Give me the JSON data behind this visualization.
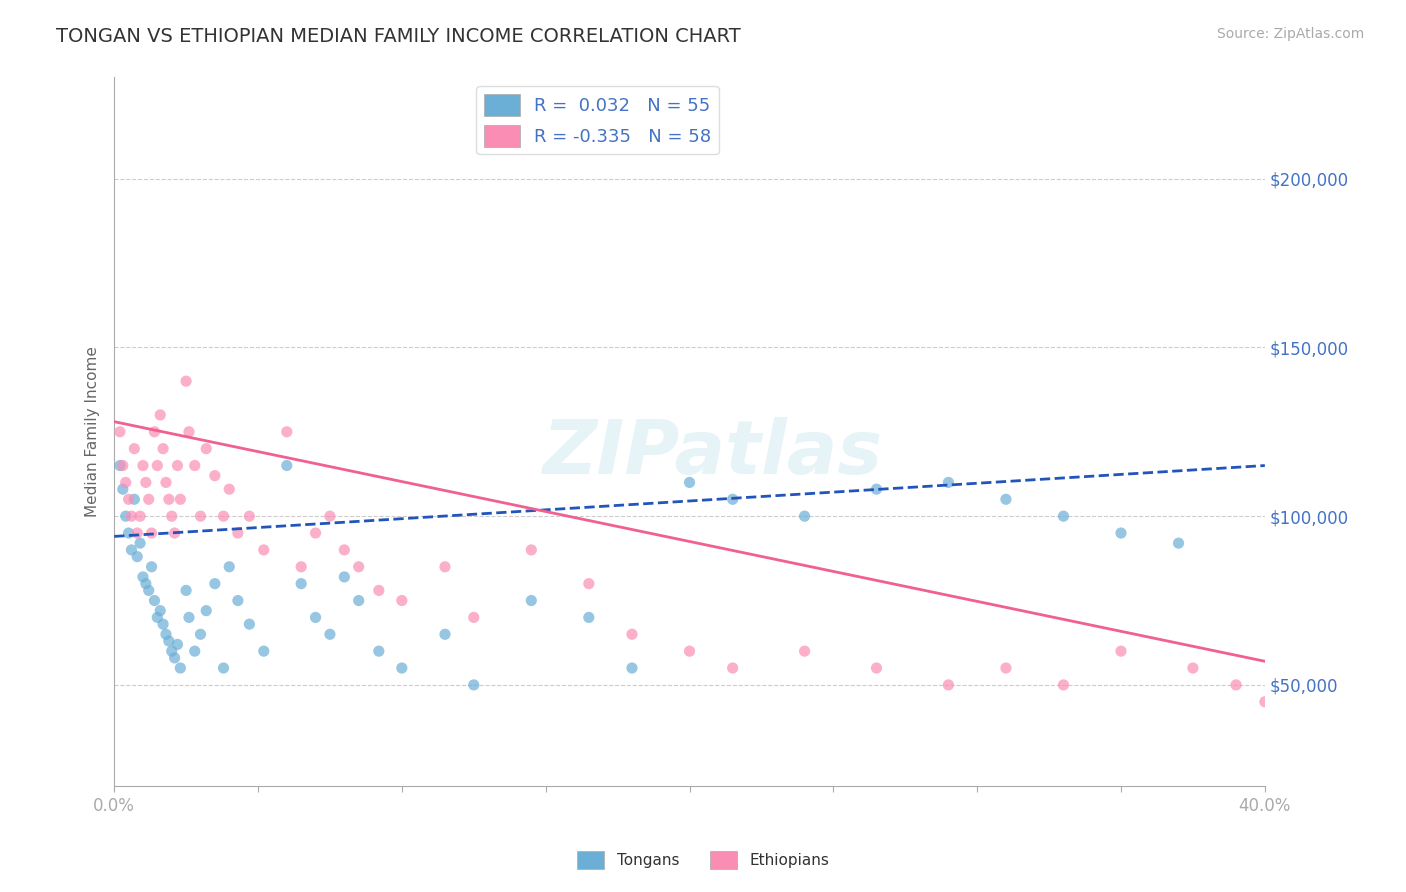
{
  "title": "TONGAN VS ETHIOPIAN MEDIAN FAMILY INCOME CORRELATION CHART",
  "source": "Source: ZipAtlas.com",
  "ylabel": "Median Family Income",
  "xlim": [
    0.0,
    0.4
  ],
  "ylim": [
    20000,
    230000
  ],
  "yticks": [
    50000,
    100000,
    150000,
    200000
  ],
  "xticks": [
    0.0,
    0.05,
    0.1,
    0.15,
    0.2,
    0.25,
    0.3,
    0.35,
    0.4
  ],
  "ytick_labels": [
    "$50,000",
    "$100,000",
    "$150,000",
    "$200,000"
  ],
  "tongan_R": 0.032,
  "tongan_N": 55,
  "ethiopian_R": -0.335,
  "ethiopian_N": 58,
  "tongan_color": "#6baed6",
  "ethiopian_color": "#fa8db4",
  "tongan_line_color": "#2255bb",
  "ethiopian_line_color": "#f06090",
  "background_color": "#ffffff",
  "grid_color": "#cccccc",
  "title_color": "#333333",
  "tick_label_color": "#4472c4",
  "watermark": "ZIPatlas",
  "tongan_trend_x": [
    0.0,
    0.4
  ],
  "tongan_trend_y": [
    94000,
    115000
  ],
  "ethiopian_trend_x": [
    0.0,
    0.4
  ],
  "ethiopian_trend_y": [
    128000,
    57000
  ],
  "tongan_x": [
    0.002,
    0.003,
    0.004,
    0.005,
    0.006,
    0.007,
    0.008,
    0.009,
    0.01,
    0.011,
    0.012,
    0.013,
    0.014,
    0.015,
    0.016,
    0.017,
    0.018,
    0.019,
    0.02,
    0.021,
    0.022,
    0.023,
    0.025,
    0.026,
    0.028,
    0.03,
    0.032,
    0.035,
    0.038,
    0.04,
    0.043,
    0.047,
    0.052,
    0.06,
    0.065,
    0.07,
    0.075,
    0.08,
    0.085,
    0.092,
    0.1,
    0.115,
    0.125,
    0.145,
    0.165,
    0.18,
    0.2,
    0.215,
    0.24,
    0.265,
    0.29,
    0.31,
    0.33,
    0.35,
    0.37
  ],
  "tongan_y": [
    115000,
    108000,
    100000,
    95000,
    90000,
    105000,
    88000,
    92000,
    82000,
    80000,
    78000,
    85000,
    75000,
    70000,
    72000,
    68000,
    65000,
    63000,
    60000,
    58000,
    62000,
    55000,
    78000,
    70000,
    60000,
    65000,
    72000,
    80000,
    55000,
    85000,
    75000,
    68000,
    60000,
    115000,
    80000,
    70000,
    65000,
    82000,
    75000,
    60000,
    55000,
    65000,
    50000,
    75000,
    70000,
    55000,
    110000,
    105000,
    100000,
    108000,
    110000,
    105000,
    100000,
    95000,
    92000
  ],
  "ethiopian_x": [
    0.002,
    0.003,
    0.004,
    0.005,
    0.006,
    0.007,
    0.008,
    0.009,
    0.01,
    0.011,
    0.012,
    0.013,
    0.014,
    0.015,
    0.016,
    0.017,
    0.018,
    0.019,
    0.02,
    0.021,
    0.022,
    0.023,
    0.025,
    0.026,
    0.028,
    0.03,
    0.032,
    0.035,
    0.038,
    0.04,
    0.043,
    0.047,
    0.052,
    0.06,
    0.065,
    0.07,
    0.075,
    0.08,
    0.085,
    0.092,
    0.1,
    0.115,
    0.125,
    0.145,
    0.165,
    0.18,
    0.2,
    0.215,
    0.24,
    0.265,
    0.29,
    0.31,
    0.33,
    0.35,
    0.375,
    0.39,
    0.4,
    0.405
  ],
  "ethiopian_y": [
    125000,
    115000,
    110000,
    105000,
    100000,
    120000,
    95000,
    100000,
    115000,
    110000,
    105000,
    95000,
    125000,
    115000,
    130000,
    120000,
    110000,
    105000,
    100000,
    95000,
    115000,
    105000,
    140000,
    125000,
    115000,
    100000,
    120000,
    112000,
    100000,
    108000,
    95000,
    100000,
    90000,
    125000,
    85000,
    95000,
    100000,
    90000,
    85000,
    78000,
    75000,
    85000,
    70000,
    90000,
    80000,
    65000,
    60000,
    55000,
    60000,
    55000,
    50000,
    55000,
    50000,
    60000,
    55000,
    50000,
    45000,
    48000
  ]
}
